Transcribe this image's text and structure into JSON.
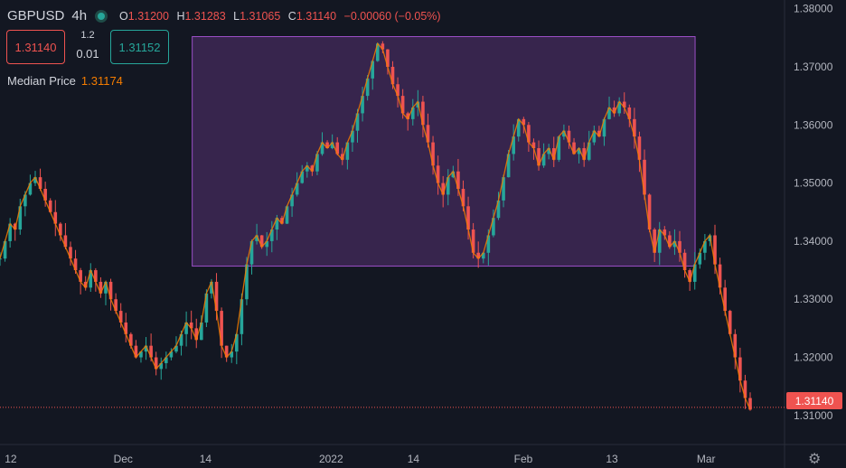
{
  "header": {
    "symbol": "GBPUSD",
    "timeframe": "4h",
    "open_key": "O",
    "open": "1.31200",
    "high_key": "H",
    "high": "1.31283",
    "low_key": "L",
    "low": "1.31065",
    "close_key": "C",
    "close": "1.31140",
    "change": "−0.00060 (−0.05%)"
  },
  "trade": {
    "sell_price": "1.31140",
    "buy_price": "1.31152",
    "spread": "1.2",
    "lot": "0.01"
  },
  "indicator": {
    "name": "Median Price",
    "value": "1.31174",
    "color": "#f57c00"
  },
  "last_price_tag": "1.31140",
  "colors": {
    "up": "#26a69a",
    "down": "#ef5350",
    "rectangle": "#7b3f9e",
    "background": "#131722"
  },
  "chart_data": {
    "type": "line",
    "title": "",
    "xlabel": "",
    "ylabel": "",
    "x_tick_labels": [
      "12",
      "Dec",
      "14",
      "2022",
      "14",
      "Feb",
      "13",
      "Mar"
    ],
    "y_tick_labels": [
      "1.38000",
      "1.37000",
      "1.36000",
      "1.35000",
      "1.34000",
      "1.33000",
      "1.32000",
      "1.31000"
    ],
    "ylim": [
      1.305,
      1.3815
    ],
    "grid": false,
    "series": [
      {
        "color": "#f57c00",
        "values": [
          1.337,
          1.34,
          1.343,
          1.342,
          1.346,
          1.348,
          1.35,
          1.351,
          1.349,
          1.347,
          1.345,
          1.343,
          1.341,
          1.339,
          1.337,
          1.335,
          1.333,
          1.332,
          1.335,
          1.333,
          1.331,
          1.333,
          1.33,
          1.328,
          1.326,
          1.324,
          1.322,
          1.32,
          1.321,
          1.322,
          1.32,
          1.318,
          1.319,
          1.32,
          1.321,
          1.322,
          1.324,
          1.326,
          1.325,
          1.323,
          1.326,
          1.331,
          1.333,
          1.328,
          1.322,
          1.32,
          1.321,
          1.324,
          1.33,
          1.336,
          1.34,
          1.341,
          1.339,
          1.34,
          1.342,
          1.344,
          1.343,
          1.346,
          1.348,
          1.35,
          1.352,
          1.353,
          1.352,
          1.355,
          1.357,
          1.356,
          1.357,
          1.355,
          1.354,
          1.357,
          1.359,
          1.362,
          1.365,
          1.368,
          1.371,
          1.374,
          1.373,
          1.37,
          1.367,
          1.365,
          1.362,
          1.361,
          1.363,
          1.364,
          1.36,
          1.357,
          1.353,
          1.35,
          1.348,
          1.351,
          1.352,
          1.349,
          1.346,
          1.342,
          1.338,
          1.337,
          1.338,
          1.341,
          1.344,
          1.347,
          1.351,
          1.355,
          1.358,
          1.361,
          1.36,
          1.357,
          1.356,
          1.353,
          1.355,
          1.356,
          1.354,
          1.358,
          1.359,
          1.357,
          1.355,
          1.356,
          1.354,
          1.357,
          1.359,
          1.358,
          1.361,
          1.363,
          1.362,
          1.364,
          1.363,
          1.361,
          1.358,
          1.354,
          1.348,
          1.342,
          1.338,
          1.342,
          1.341,
          1.339,
          1.34,
          1.338,
          1.335,
          1.333,
          1.336,
          1.338,
          1.34,
          1.341,
          1.336,
          1.332,
          1.328,
          1.324,
          1.32,
          1.316,
          1.313,
          1.311
        ]
      }
    ],
    "annotations": [
      {
        "type": "rectangle",
        "x": [
          0.245,
          0.886
        ],
        "y": [
          1.3357,
          1.3752
        ]
      }
    ]
  }
}
